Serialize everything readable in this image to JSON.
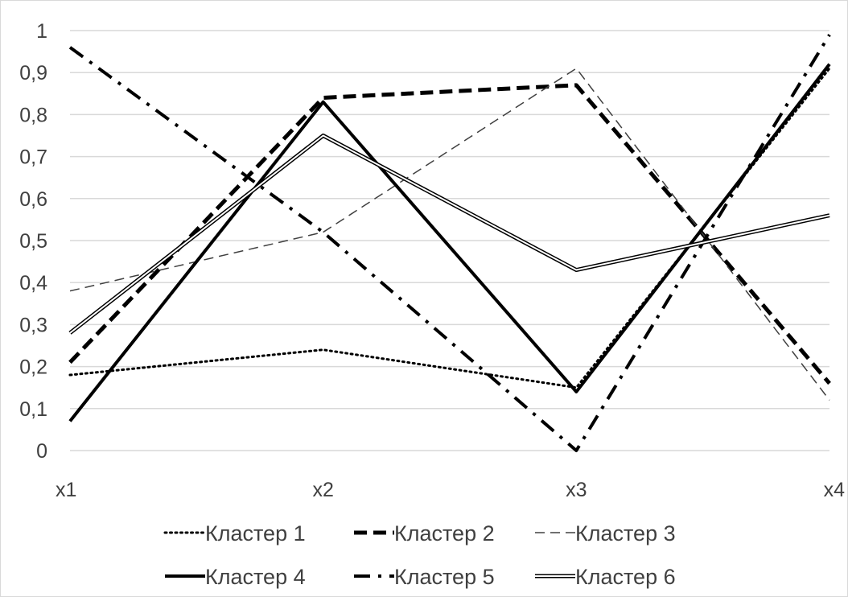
{
  "chart_data": {
    "type": "line",
    "categories": [
      "x1",
      "x2",
      "x3",
      "x4"
    ],
    "y_ticks": [
      "0",
      "0,1",
      "0,2",
      "0,3",
      "0,4",
      "0,5",
      "0,6",
      "0,7",
      "0,8",
      "0,9",
      "1"
    ],
    "ylim": [
      0,
      1
    ],
    "grid": true,
    "legend_position": "bottom",
    "series": [
      {
        "name": "Кластер 1",
        "values": [
          0.18,
          0.24,
          0.15,
          0.91
        ],
        "style": "dotted",
        "color": "#000000"
      },
      {
        "name": "Кластер 2",
        "values": [
          0.21,
          0.84,
          0.87,
          0.16
        ],
        "style": "dashed-bold",
        "color": "#000000"
      },
      {
        "name": "Кластер 3",
        "values": [
          0.38,
          0.52,
          0.91,
          0.12
        ],
        "style": "dashed-thin",
        "color": "#404040"
      },
      {
        "name": "Кластер 4",
        "values": [
          0.07,
          0.83,
          0.14,
          0.92
        ],
        "style": "solid-bold",
        "color": "#000000"
      },
      {
        "name": "Кластер 5",
        "values": [
          0.96,
          0.52,
          0.0,
          0.99
        ],
        "style": "dash-dot",
        "color": "#000000"
      },
      {
        "name": "Кластер 6",
        "values": [
          0.28,
          0.75,
          0.43,
          0.56
        ],
        "style": "double",
        "color": "#000000"
      }
    ]
  }
}
